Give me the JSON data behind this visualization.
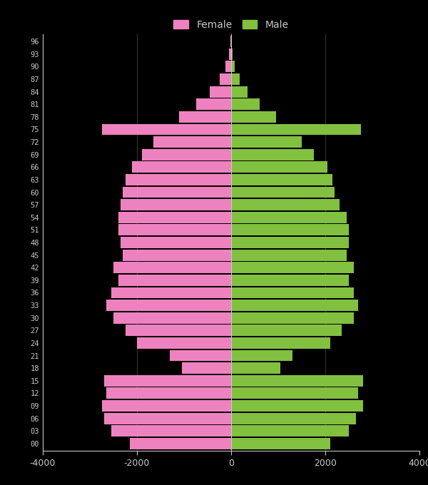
{
  "ages": [
    0,
    3,
    6,
    9,
    12,
    15,
    18,
    21,
    24,
    27,
    30,
    33,
    36,
    39,
    42,
    45,
    48,
    51,
    54,
    57,
    60,
    63,
    66,
    69,
    72,
    75,
    78,
    81,
    84,
    87,
    90,
    93,
    96
  ],
  "female": [
    2150,
    2550,
    2700,
    2750,
    2650,
    2700,
    1050,
    1300,
    2000,
    2250,
    2500,
    2650,
    2550,
    2400,
    2500,
    2300,
    2350,
    2400,
    2400,
    2350,
    2300,
    2250,
    2100,
    1900,
    1650,
    2750,
    1100,
    750,
    450,
    250,
    120,
    50,
    20
  ],
  "male": [
    2100,
    2500,
    2650,
    2800,
    2700,
    2800,
    1050,
    1300,
    2100,
    2350,
    2600,
    2700,
    2600,
    2500,
    2600,
    2450,
    2500,
    2500,
    2450,
    2300,
    2200,
    2150,
    2050,
    1750,
    1500,
    2750,
    950,
    600,
    350,
    180,
    80,
    30,
    10
  ],
  "female_color": "#ee82c0",
  "male_color": "#82c040",
  "bg_color": "#000000",
  "text_color": "#c8c8c8",
  "grid_color": "#555555",
  "xlim": [
    -4000,
    4000
  ],
  "xticks": [
    -4000,
    -2000,
    0,
    2000,
    4000
  ],
  "bar_height": 2.7,
  "figwidth": 6.0,
  "figheight": 6.8,
  "dpi": 100
}
